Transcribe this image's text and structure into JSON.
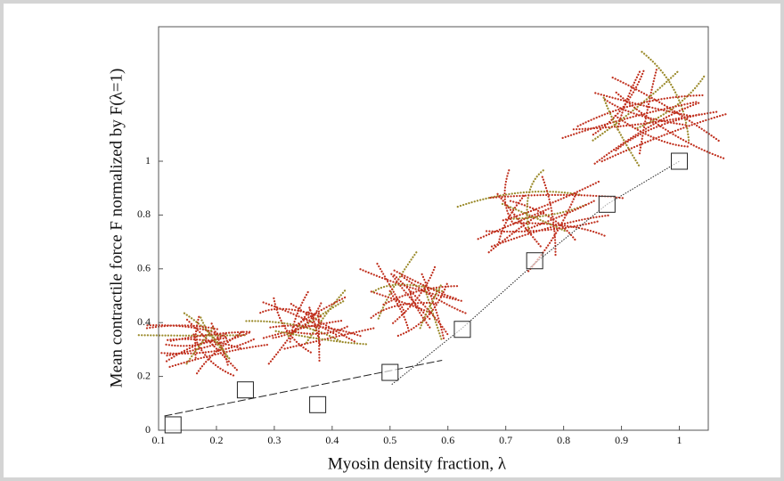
{
  "chart_data": {
    "type": "scatter",
    "x_label": "Myosin density fraction, λ",
    "y_label": "Mean contractile force F normalized by F(λ=1)",
    "x": [
      0.125,
      0.25,
      0.375,
      0.5,
      0.625,
      0.75,
      0.875,
      1
    ],
    "values": [
      0.02,
      0.15,
      0.095,
      0.215,
      0.375,
      0.63,
      0.84,
      1.0
    ],
    "color": "#222222",
    "lines": [
      {
        "style": "dashed",
        "x": [
          0.11,
          0.59
        ],
        "values": [
          0.053,
          0.26
        ]
      },
      {
        "style": "dotted",
        "x": [
          0.503,
          0.625,
          0.75,
          0.875,
          1
        ],
        "values": [
          0.17,
          0.38,
          0.62,
          0.84,
          1.0
        ]
      }
    ],
    "xlim": [
      0.1,
      1.05
    ],
    "xticks": [
      0.1,
      0.2,
      0.3,
      0.4,
      0.5,
      0.6,
      0.7,
      0.8,
      0.9,
      1
    ],
    "ylim": [
      0,
      1.5
    ],
    "yticks": [
      0,
      0.2,
      0.4,
      0.6,
      0.8,
      1
    ]
  }
}
